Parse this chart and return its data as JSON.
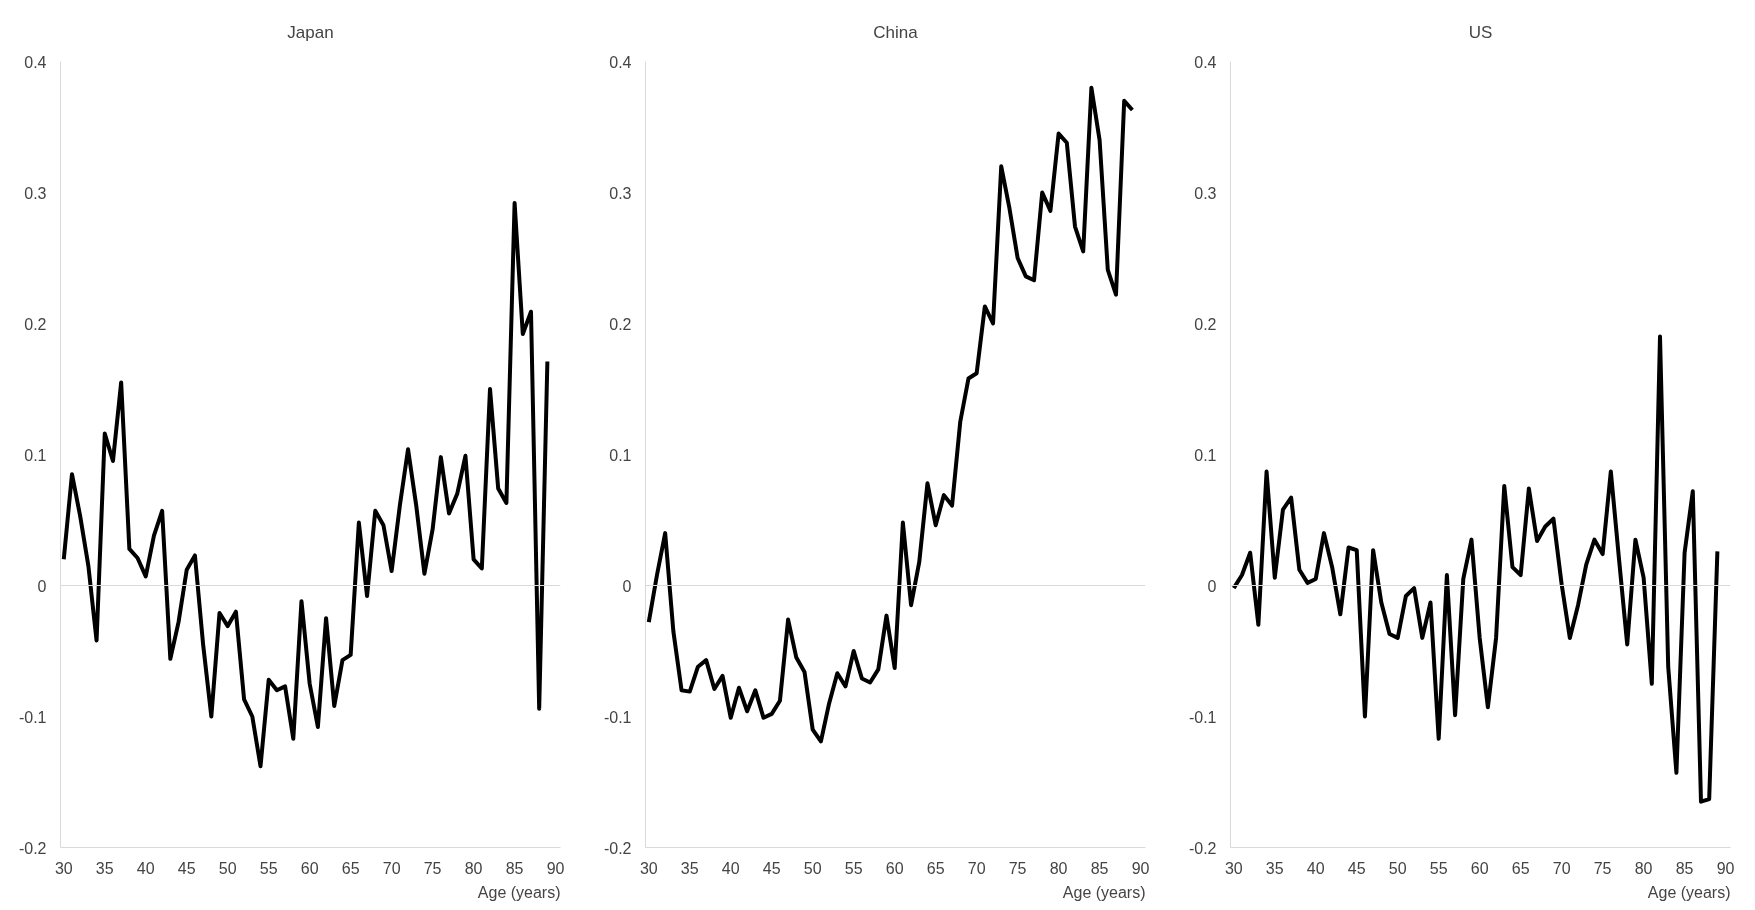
{
  "chart_data": [
    {
      "type": "line",
      "title": "Japan",
      "xlabel": "Age (years)",
      "x": [
        30,
        31,
        32,
        33,
        34,
        35,
        36,
        37,
        38,
        39,
        40,
        41,
        42,
        43,
        44,
        45,
        46,
        47,
        48,
        49,
        50,
        51,
        52,
        53,
        54,
        55,
        56,
        57,
        58,
        59,
        60,
        61,
        62,
        63,
        64,
        65,
        66,
        67,
        68,
        69,
        70,
        71,
        72,
        73,
        74,
        75,
        76,
        77,
        78,
        79,
        80,
        81,
        82,
        83,
        84,
        85,
        86,
        87,
        88,
        89
      ],
      "xlim": [
        29.6,
        90.6
      ],
      "ylim": [
        -0.2,
        0.4
      ],
      "xticks": [
        30,
        35,
        40,
        45,
        50,
        55,
        60,
        65,
        70,
        75,
        80,
        85,
        90
      ],
      "yticks": [
        -0.2,
        -0.1,
        0,
        0.1,
        0.2,
        0.3,
        0.4
      ],
      "series": [
        {
          "color": "#000000",
          "values": [
            0.02,
            0.085,
            0.053,
            0.015,
            -0.042,
            0.116,
            0.095,
            0.155,
            0.028,
            0.021,
            0.007,
            0.038,
            0.057,
            -0.056,
            -0.028,
            0.012,
            0.023,
            -0.045,
            -0.1,
            -0.021,
            -0.031,
            -0.02,
            -0.087,
            -0.1,
            -0.138,
            -0.072,
            -0.08,
            -0.077,
            -0.117,
            -0.012,
            -0.075,
            -0.108,
            -0.025,
            -0.092,
            -0.057,
            -0.053,
            0.048,
            -0.008,
            0.057,
            0.046,
            0.011,
            0.061,
            0.104,
            0.061,
            0.009,
            0.043,
            0.098,
            0.055,
            0.07,
            0.099,
            0.02,
            0.013,
            0.15,
            0.074,
            0.063,
            0.292,
            0.192,
            0.209,
            -0.094,
            0.171
          ]
        }
      ],
      "ref_lines": [
        {
          "axis": "y",
          "value": 0,
          "color": "#d9d9d9"
        }
      ]
    },
    {
      "type": "line",
      "title": "China",
      "xlabel": "Age (years)",
      "x": [
        30,
        31,
        32,
        33,
        34,
        35,
        36,
        37,
        38,
        39,
        40,
        41,
        42,
        43,
        44,
        45,
        46,
        47,
        48,
        49,
        50,
        51,
        52,
        53,
        54,
        55,
        56,
        57,
        58,
        59,
        60,
        61,
        62,
        63,
        64,
        65,
        66,
        67,
        68,
        69,
        70,
        71,
        72,
        73,
        74,
        75,
        76,
        77,
        78,
        79,
        80,
        81,
        82,
        83,
        84,
        85,
        86,
        87,
        88,
        89
      ],
      "xlim": [
        29.6,
        90.6
      ],
      "ylim": [
        -0.2,
        0.4
      ],
      "xticks": [
        30,
        35,
        40,
        45,
        50,
        55,
        60,
        65,
        70,
        75,
        80,
        85,
        90
      ],
      "yticks": [
        -0.2,
        -0.1,
        0,
        0.1,
        0.2,
        0.3,
        0.4
      ],
      "series": [
        {
          "color": "#000000",
          "values": [
            -0.028,
            0.008,
            0.04,
            -0.035,
            -0.08,
            -0.081,
            -0.062,
            -0.057,
            -0.079,
            -0.069,
            -0.101,
            -0.078,
            -0.096,
            -0.08,
            -0.101,
            -0.098,
            -0.088,
            -0.026,
            -0.055,
            -0.066,
            -0.11,
            -0.119,
            -0.09,
            -0.067,
            -0.077,
            -0.05,
            -0.071,
            -0.074,
            -0.064,
            -0.023,
            -0.063,
            0.048,
            -0.015,
            0.018,
            0.078,
            0.046,
            0.069,
            0.061,
            0.125,
            0.158,
            0.162,
            0.213,
            0.2,
            0.32,
            0.288,
            0.25,
            0.236,
            0.233,
            0.3,
            0.286,
            0.345,
            0.338,
            0.274,
            0.255,
            0.38,
            0.34,
            0.241,
            0.222,
            0.37,
            0.363
          ]
        }
      ],
      "ref_lines": [
        {
          "axis": "y",
          "value": 0,
          "color": "#d9d9d9"
        }
      ]
    },
    {
      "type": "line",
      "title": "US",
      "xlabel": "Age (years)",
      "x": [
        30,
        31,
        32,
        33,
        34,
        35,
        36,
        37,
        38,
        39,
        40,
        41,
        42,
        43,
        44,
        45,
        46,
        47,
        48,
        49,
        50,
        51,
        52,
        53,
        54,
        55,
        56,
        57,
        58,
        59,
        60,
        61,
        62,
        63,
        64,
        65,
        66,
        67,
        68,
        69,
        70,
        71,
        72,
        73,
        74,
        75,
        76,
        77,
        78,
        79,
        80,
        81,
        82,
        83,
        84,
        85,
        86,
        87,
        88,
        89
      ],
      "xlim": [
        29.6,
        90.6
      ],
      "ylim": [
        -0.2,
        0.4
      ],
      "xticks": [
        30,
        35,
        40,
        45,
        50,
        55,
        60,
        65,
        70,
        75,
        80,
        85,
        90
      ],
      "yticks": [
        -0.2,
        -0.1,
        0,
        0.1,
        0.2,
        0.3,
        0.4
      ],
      "series": [
        {
          "color": "#000000",
          "values": [
            -0.002,
            0.008,
            0.025,
            -0.03,
            0.087,
            0.006,
            0.058,
            0.067,
            0.012,
            0.002,
            0.005,
            0.04,
            0.014,
            -0.022,
            0.029,
            0.027,
            -0.1,
            0.027,
            -0.013,
            -0.037,
            -0.04,
            -0.008,
            -0.002,
            -0.04,
            -0.013,
            -0.117,
            0.008,
            -0.099,
            0.005,
            0.035,
            -0.04,
            -0.093,
            -0.04,
            0.076,
            0.014,
            0.008,
            0.074,
            0.034,
            0.045,
            0.051,
            0.001,
            -0.04,
            -0.015,
            0.016,
            0.035,
            0.024,
            0.087,
            0.02,
            -0.045,
            0.035,
            0.006,
            -0.075,
            0.19,
            -0.062,
            -0.143,
            0.025,
            0.072,
            -0.165,
            -0.163,
            0.026
          ]
        }
      ],
      "ref_lines": [
        {
          "axis": "y",
          "value": 0,
          "color": "#d9d9d9"
        }
      ]
    }
  ]
}
